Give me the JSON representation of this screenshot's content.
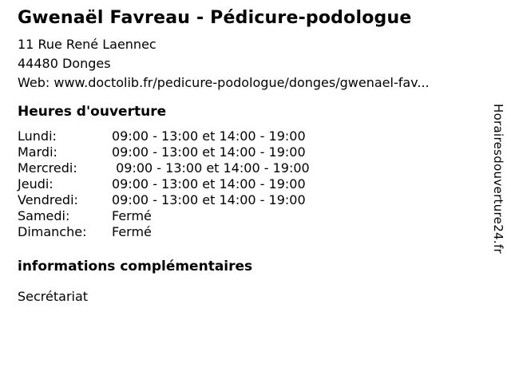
{
  "page": {
    "title": "Gwenaël Favreau - Pédicure-podologue",
    "address": {
      "line1": "11 Rue René Laennec",
      "line2": "44480 Donges",
      "web": "Web: www.doctolib.fr/pedicure-podologue/donges/gwenael-fav..."
    },
    "hours_heading": "Heures d'ouverture",
    "hours": [
      {
        "day": "Lundi:",
        "time": "09:00 - 13:00 et 14:00 - 19:00"
      },
      {
        "day": "Mardi:",
        "time": "09:00 - 13:00 et 14:00 - 19:00"
      },
      {
        "day": "Mercredi:",
        "time": " 09:00 - 13:00 et 14:00 - 19:00"
      },
      {
        "day": "Jeudi:",
        "time": "09:00 - 13:00 et 14:00 - 19:00"
      },
      {
        "day": "Vendredi:",
        "time": "09:00 - 13:00 et 14:00 - 19:00"
      },
      {
        "day": "Samedi:",
        "time": "Fermé"
      },
      {
        "day": "Dimanche:",
        "time": "Fermé"
      }
    ],
    "info_heading": "informations complémentaires",
    "info_value": "Secrétariat",
    "watermark": "Horairesdouverture24.fr"
  },
  "colors": {
    "text": "#000000",
    "background": "#ffffff"
  }
}
